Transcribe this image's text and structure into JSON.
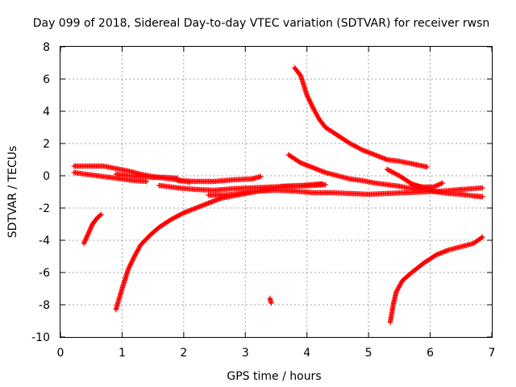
{
  "chart_data": {
    "type": "scatter",
    "title": "Day 099 of 2018, Sidereal Day-to-day VTEC variation (SDTVAR) for receiver rwsn",
    "xlabel": "GPS time / hours",
    "ylabel": "SDTVAR / TECUs",
    "xlim": [
      0,
      7
    ],
    "ylim": [
      -10,
      8
    ],
    "xticks": [
      "0",
      "1",
      "2",
      "3",
      "4",
      "5",
      "6",
      "7"
    ],
    "yticks": [
      "-10",
      "-8",
      "-6",
      "-4",
      "-2",
      "0",
      "2",
      "4",
      "6",
      "8"
    ],
    "grid": true,
    "marker": "plus",
    "color": "#ff0000",
    "series": [
      {
        "points": [
          [
            0.22,
            0.6
          ],
          [
            0.5,
            0.6
          ],
          [
            0.7,
            0.6
          ],
          [
            0.9,
            0.45
          ],
          [
            1.1,
            0.3
          ],
          [
            1.3,
            0.1
          ],
          [
            1.5,
            -0.05
          ],
          [
            1.7,
            -0.15
          ],
          [
            1.9,
            -0.25
          ],
          [
            2.1,
            -0.4
          ]
        ]
      },
      {
        "points": [
          [
            0.22,
            0.2
          ],
          [
            0.4,
            0.1
          ],
          [
            0.6,
            0.0
          ],
          [
            0.8,
            -0.1
          ],
          [
            1.0,
            -0.2
          ],
          [
            1.2,
            -0.3
          ],
          [
            1.4,
            -0.35
          ]
        ]
      },
      {
        "points": [
          [
            0.9,
            0.1
          ],
          [
            1.1,
            0.0
          ],
          [
            1.3,
            -0.05
          ],
          [
            1.5,
            -0.1
          ],
          [
            1.7,
            -0.1
          ],
          [
            1.9,
            -0.15
          ]
        ]
      },
      {
        "points": [
          [
            1.6,
            -0.6
          ],
          [
            1.9,
            -0.75
          ],
          [
            2.2,
            -0.85
          ],
          [
            2.5,
            -0.9
          ],
          [
            2.8,
            -0.8
          ],
          [
            3.1,
            -0.75
          ],
          [
            3.4,
            -0.7
          ],
          [
            3.7,
            -0.65
          ],
          [
            4.0,
            -0.62
          ],
          [
            4.3,
            -0.55
          ]
        ]
      },
      {
        "points": [
          [
            1.9,
            -0.3
          ],
          [
            2.2,
            -0.35
          ],
          [
            2.5,
            -0.35
          ],
          [
            2.8,
            -0.25
          ],
          [
            3.1,
            -0.2
          ],
          [
            3.25,
            -0.05
          ]
        ]
      },
      {
        "points": [
          [
            2.4,
            -1.2
          ],
          [
            2.6,
            -1.2
          ],
          [
            2.8,
            -1.15
          ],
          [
            3.0,
            -1.05
          ],
          [
            3.2,
            -0.95
          ],
          [
            3.5,
            -0.9
          ],
          [
            3.8,
            -0.95
          ],
          [
            4.1,
            -1.05
          ],
          [
            4.4,
            -1.05
          ],
          [
            4.7,
            -1.1
          ],
          [
            5.0,
            -1.15
          ],
          [
            5.3,
            -1.1
          ],
          [
            5.6,
            -1.05
          ],
          [
            5.9,
            -1.0
          ],
          [
            6.2,
            -0.95
          ],
          [
            6.5,
            -0.85
          ],
          [
            6.85,
            -0.75
          ]
        ]
      },
      {
        "points": [
          [
            0.9,
            -8.3
          ],
          [
            1.0,
            -7.0
          ],
          [
            1.1,
            -5.8
          ],
          [
            1.2,
            -5.0
          ],
          [
            1.3,
            -4.3
          ],
          [
            1.45,
            -3.7
          ],
          [
            1.6,
            -3.2
          ],
          [
            1.8,
            -2.7
          ],
          [
            2.0,
            -2.3
          ],
          [
            2.2,
            -2.0
          ],
          [
            2.4,
            -1.7
          ],
          [
            2.6,
            -1.4
          ],
          [
            2.8,
            -1.25
          ],
          [
            3.0,
            -1.1
          ],
          [
            3.3,
            -0.9
          ],
          [
            3.6,
            -0.65
          ],
          [
            3.9,
            -0.6
          ],
          [
            4.1,
            -0.55
          ],
          [
            4.25,
            -0.5
          ]
        ]
      },
      {
        "points": [
          [
            0.38,
            -4.2
          ],
          [
            0.45,
            -3.6
          ],
          [
            0.52,
            -3.0
          ],
          [
            0.6,
            -2.6
          ],
          [
            0.66,
            -2.4
          ]
        ]
      },
      {
        "points": [
          [
            3.8,
            6.7
          ],
          [
            3.9,
            6.2
          ],
          [
            4.0,
            5.0
          ],
          [
            4.1,
            4.2
          ],
          [
            4.2,
            3.5
          ],
          [
            4.3,
            3.0
          ],
          [
            4.5,
            2.5
          ],
          [
            4.7,
            2.0
          ],
          [
            4.9,
            1.6
          ],
          [
            5.1,
            1.3
          ],
          [
            5.3,
            1.0
          ],
          [
            5.5,
            0.9
          ],
          [
            5.7,
            0.75
          ],
          [
            5.95,
            0.55
          ]
        ]
      },
      {
        "points": [
          [
            3.7,
            1.3
          ],
          [
            3.9,
            0.8
          ],
          [
            4.1,
            0.5
          ],
          [
            4.3,
            0.2
          ],
          [
            4.5,
            0.0
          ],
          [
            4.7,
            -0.2
          ],
          [
            4.9,
            -0.3
          ],
          [
            5.1,
            -0.45
          ],
          [
            5.3,
            -0.55
          ],
          [
            5.5,
            -0.65
          ],
          [
            5.7,
            -0.8
          ],
          [
            5.9,
            -0.85
          ],
          [
            6.1,
            -1.0
          ],
          [
            6.3,
            -1.1
          ],
          [
            6.5,
            -1.15
          ],
          [
            6.7,
            -1.25
          ],
          [
            6.85,
            -1.3
          ]
        ]
      },
      {
        "points": [
          [
            5.3,
            0.4
          ],
          [
            5.5,
            0.0
          ],
          [
            5.7,
            -0.5
          ],
          [
            5.9,
            -0.75
          ],
          [
            6.05,
            -0.9
          ]
        ]
      },
      {
        "points": [
          [
            5.35,
            -9.1
          ],
          [
            5.4,
            -8.0
          ],
          [
            5.45,
            -7.2
          ],
          [
            5.55,
            -6.5
          ],
          [
            5.7,
            -6.0
          ],
          [
            5.9,
            -5.4
          ],
          [
            6.1,
            -4.9
          ],
          [
            6.3,
            -4.6
          ],
          [
            6.5,
            -4.4
          ],
          [
            6.7,
            -4.2
          ],
          [
            6.85,
            -3.8
          ]
        ]
      },
      {
        "points": [
          [
            5.7,
            -0.6
          ],
          [
            5.9,
            -0.7
          ],
          [
            6.05,
            -0.7
          ],
          [
            6.2,
            -0.45
          ]
        ]
      },
      {
        "points": [
          [
            3.4,
            -7.6
          ],
          [
            3.42,
            -7.9
          ]
        ]
      }
    ]
  }
}
